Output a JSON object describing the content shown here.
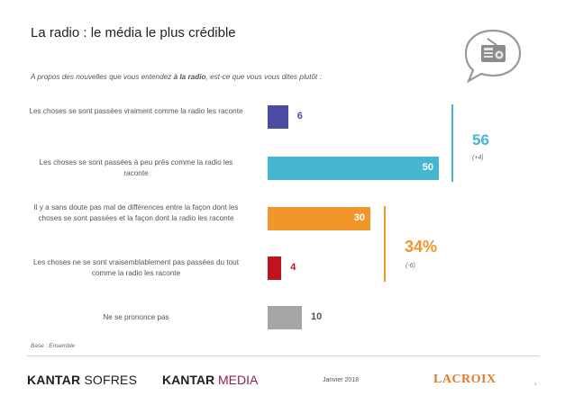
{
  "header": {
    "title": "La radio : le média le plus crédible",
    "subtitle_before": "A propos des nouvelles que vous entendez ",
    "subtitle_bold": "à la radio",
    "subtitle_after": ", est-ce que vous vous dites plutôt :"
  },
  "icon": {
    "name": "radio-speech-bubble-icon"
  },
  "chart_data": {
    "type": "bar",
    "orientation": "horizontal",
    "categories": [
      "Les choses se sont passées vraiment comme la radio les raconte",
      "Les choses se sont passées à peu près comme la radio les raconte",
      "Il y a sans doute pas mal de différences entre la façon dont les choses se sont passées et la façon dont la radio les raconte",
      "Les choses ne se sont vraisemblablement pas passées du tout comme la radio les raconte",
      "Ne se prononce pas"
    ],
    "values": [
      6,
      50,
      30,
      4,
      10
    ],
    "value_labels": [
      "6",
      "50",
      "30",
      "4",
      "10"
    ],
    "colors": [
      "#4b4ca3",
      "#45b6cf",
      "#f0962b",
      "#c1121f",
      "#a6a6a6"
    ],
    "xlim": [
      0,
      50
    ],
    "grid": false,
    "groups": [
      {
        "total": "56",
        "delta": "(+4)",
        "color": "#45b6cf",
        "rows": [
          0,
          1
        ]
      },
      {
        "total": "34%",
        "delta": "(-6)",
        "color": "#f0962b",
        "rows": [
          2,
          3
        ]
      }
    ]
  },
  "footer": {
    "base_note": "Base : Ensemble",
    "logo_sofres_bold": "KANTAR",
    "logo_sofres_light": " SOFRES",
    "logo_media_bold": "KANTAR",
    "logo_media_light": " MEDIA",
    "date": "Janvier 2018",
    "logo_lacroix": "LACROIX",
    "page_number": "9"
  }
}
